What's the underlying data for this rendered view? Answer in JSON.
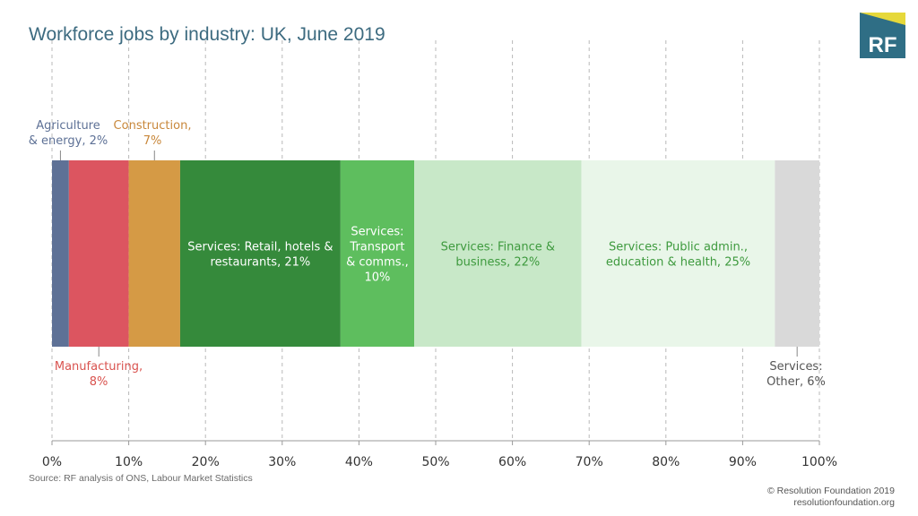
{
  "title": "Workforce jobs by industry: UK, June 2019",
  "logo": {
    "text": "RF",
    "bg": "#2f6e85",
    "accent": "#e6d83a"
  },
  "source": "Source: RF analysis of ONS, Labour Market Statistics",
  "copyright": [
    "© Resolution Foundation 2019",
    "resolutionfoundation.org"
  ],
  "chart_data": {
    "type": "bar",
    "stacked": true,
    "orientation": "horizontal",
    "xlim": [
      0,
      100
    ],
    "xticks": [
      "0%",
      "10%",
      "20%",
      "30%",
      "40%",
      "50%",
      "60%",
      "70%",
      "80%",
      "90%",
      "100%"
    ],
    "grid": "vertical-dashed",
    "series": [
      {
        "name": "Agriculture & energy",
        "value": 2.2,
        "color": "#5e7196",
        "label": [
          "Agriculture",
          "& energy, 2%"
        ],
        "label_color": "#5e7196",
        "placement": "above"
      },
      {
        "name": "Manufacturing",
        "value": 7.8,
        "color": "#dc5560",
        "label": [
          "Manufacturing,",
          "8%"
        ],
        "label_color": "#d9534f",
        "placement": "below"
      },
      {
        "name": "Construction",
        "value": 6.7,
        "color": "#d59a45",
        "label": [
          "Construction,",
          "7%"
        ],
        "label_color": "#c8873a",
        "placement": "above"
      },
      {
        "name": "Services: Retail, hotels & restaurants",
        "value": 20.9,
        "color": "#358a3b",
        "label": [
          "Services: Retail, hotels &",
          "restaurants, 21%"
        ],
        "label_color": "#ffffff",
        "placement": "inside"
      },
      {
        "name": "Services: Transport & comms.",
        "value": 9.6,
        "color": "#5ebe5e",
        "label": [
          "Services:",
          "Transport",
          "& comms.,",
          "10%"
        ],
        "label_color": "#ffffff",
        "placement": "inside"
      },
      {
        "name": "Services: Finance & business",
        "value": 21.8,
        "color": "#c8e8c8",
        "label": [
          "Services: Finance &",
          "business, 22%"
        ],
        "label_color": "#3e9a3e",
        "placement": "inside"
      },
      {
        "name": "Services: Public admin., education & health",
        "value": 25.2,
        "color": "#e9f6e9",
        "label": [
          "Services: Public admin.,",
          "education & health, 25%"
        ],
        "label_color": "#3e9a3e",
        "placement": "inside"
      },
      {
        "name": "Services: Other",
        "value": 5.8,
        "color": "#d9d9d9",
        "label": [
          "Services:",
          "Other, 6%"
        ],
        "label_color": "#555555",
        "placement": "below"
      }
    ]
  }
}
